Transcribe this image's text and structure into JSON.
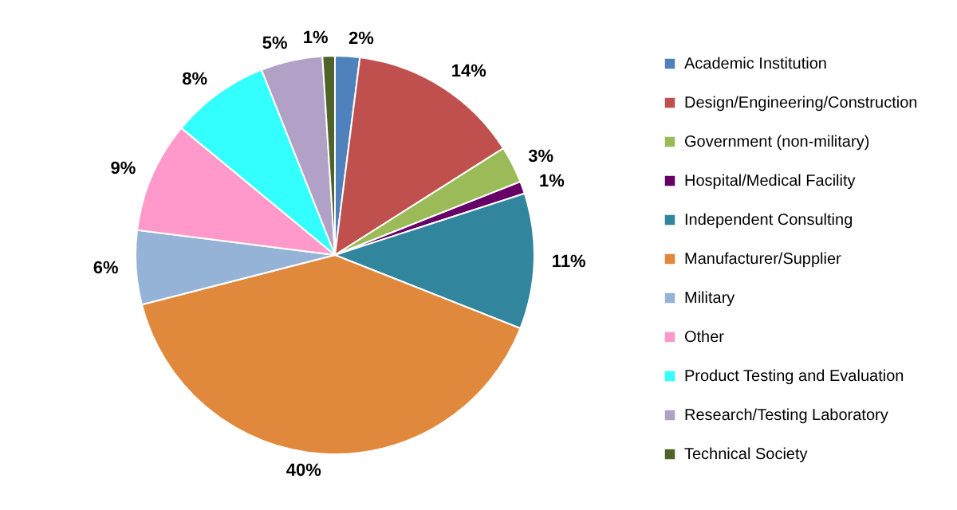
{
  "chart_data": {
    "type": "pie",
    "categories": [
      "Academic Institution",
      "Design/Engineering/Construction",
      "Government (non-military)",
      "Hospital/Medical Facility",
      "Independent Consulting",
      "Manufacturer/Supplier",
      "Military",
      "Other",
      "Product Testing and Evaluation",
      "Research/Testing Laboratory",
      "Technical Society"
    ],
    "values": [
      2,
      14,
      3,
      1,
      11,
      40,
      6,
      9,
      8,
      5,
      1
    ],
    "colors": [
      "#4f81bd",
      "#c0504d",
      "#9bbb59",
      "#660066",
      "#31859c",
      "#e0883c",
      "#95b3d7",
      "#ff99cc",
      "#33ffff",
      "#b2a1c7",
      "#4f6228"
    ],
    "value_labels": [
      "2%",
      "14%",
      "3%",
      "1%",
      "11%",
      "40%",
      "6%",
      "9%",
      "8%",
      "5%",
      "1%"
    ],
    "legend": "right"
  }
}
